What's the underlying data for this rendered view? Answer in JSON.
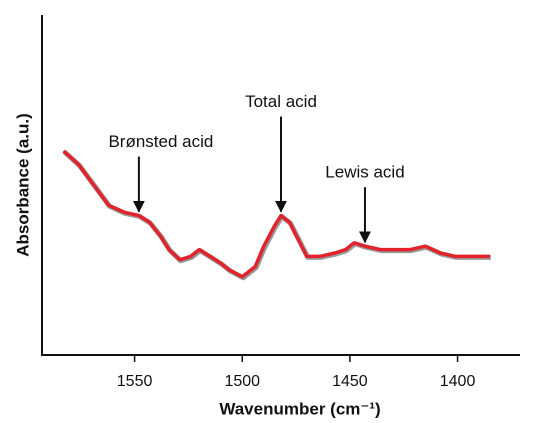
{
  "chart_data": {
    "type": "line",
    "x_label": "Wavenumber (cm⁻¹)",
    "y_label": "Absorbance (a.u.)",
    "xlim": [
      1593,
      1371
    ],
    "xticks": [
      1550,
      1500,
      1450,
      1400
    ],
    "ylim": [
      0,
      1
    ],
    "series": [
      {
        "color": "#e3232b",
        "x": [
          1583,
          1576,
          1569,
          1562,
          1555,
          1548,
          1543,
          1538,
          1534,
          1529,
          1524,
          1520,
          1515,
          1510,
          1506,
          1500,
          1494,
          1490,
          1485,
          1482,
          1478,
          1474,
          1470,
          1464,
          1457,
          1452,
          1448,
          1443,
          1436,
          1429,
          1422,
          1415,
          1408,
          1401,
          1394,
          1385
        ],
        "values": [
          0.6,
          0.56,
          0.5,
          0.44,
          0.42,
          0.41,
          0.39,
          0.35,
          0.31,
          0.28,
          0.29,
          0.31,
          0.29,
          0.27,
          0.25,
          0.23,
          0.26,
          0.32,
          0.38,
          0.41,
          0.39,
          0.34,
          0.29,
          0.29,
          0.3,
          0.31,
          0.33,
          0.32,
          0.31,
          0.31,
          0.31,
          0.32,
          0.3,
          0.29,
          0.29,
          0.29
        ]
      }
    ],
    "annotations": [
      {
        "text": "Brønsted acid",
        "x": 1548
      },
      {
        "text": "Total acid",
        "x": 1482
      },
      {
        "text": "Lewis acid",
        "x": 1443
      }
    ]
  }
}
